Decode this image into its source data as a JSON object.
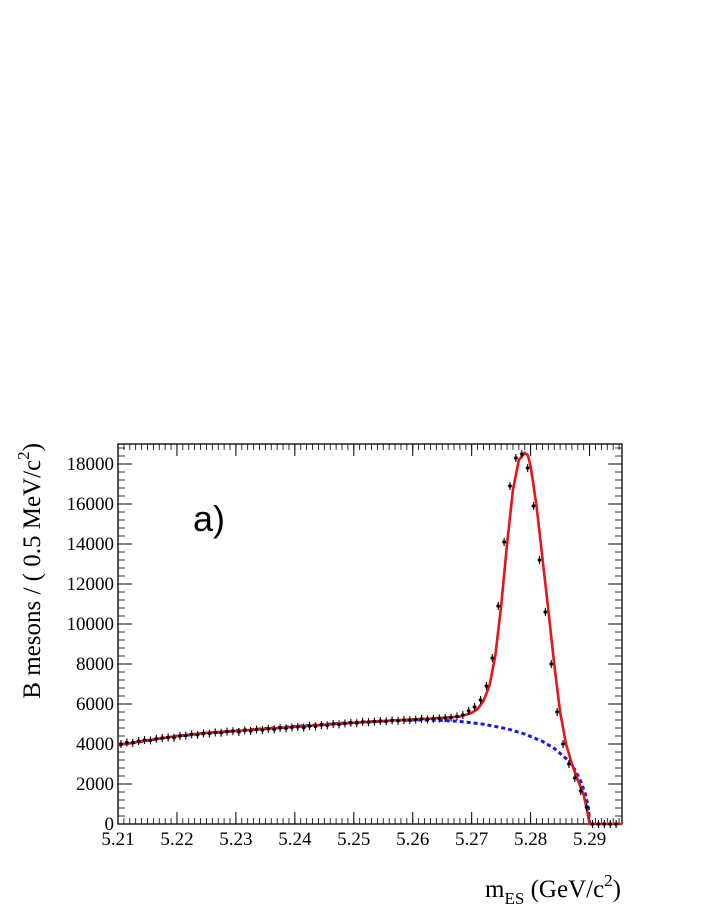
{
  "chart_data": {
    "type": "line",
    "title": "",
    "annotation": "a)",
    "xlabel": {
      "main": "m",
      "sub": "ES",
      "open": " (GeV/c",
      "sup": "2",
      "close": ")"
    },
    "ylabel": {
      "main": "B mesons / ( 0.5 MeV/c",
      "sup": "2",
      "close": ")"
    },
    "xlim": [
      5.21,
      5.2955
    ],
    "ylim": [
      0,
      19000
    ],
    "x_ticks": [
      "5.21",
      "5.22",
      "5.23",
      "5.24",
      "5.25",
      "5.26",
      "5.27",
      "5.28",
      "5.29"
    ],
    "y_ticks": [
      "0",
      "2000",
      "4000",
      "6000",
      "8000",
      "10000",
      "12000",
      "14000",
      "16000",
      "18000"
    ],
    "grid": false,
    "colors": {
      "total_fit": "#e8141a",
      "background_fit": "#1a1ae6",
      "data": "#000000"
    },
    "series": [
      {
        "kind": "points-with-errors",
        "x": [
          5.2105,
          5.2115,
          5.2125,
          5.2135,
          5.2145,
          5.2155,
          5.2165,
          5.2175,
          5.2185,
          5.2195,
          5.2205,
          5.2215,
          5.2225,
          5.2235,
          5.2245,
          5.2255,
          5.2265,
          5.2275,
          5.2285,
          5.2295,
          5.2305,
          5.2315,
          5.2325,
          5.2335,
          5.2345,
          5.2355,
          5.2365,
          5.2375,
          5.2385,
          5.2395,
          5.2405,
          5.2415,
          5.2425,
          5.2435,
          5.2445,
          5.2455,
          5.2465,
          5.2475,
          5.2485,
          5.2495,
          5.2505,
          5.2515,
          5.2525,
          5.2535,
          5.2545,
          5.2555,
          5.2565,
          5.2575,
          5.2585,
          5.2595,
          5.2605,
          5.2615,
          5.2625,
          5.2635,
          5.2645,
          5.2655,
          5.2665,
          5.2675,
          5.2685,
          5.2695,
          5.2705,
          5.2715,
          5.2725,
          5.2735,
          5.2745,
          5.2755,
          5.2765,
          5.2775,
          5.2785,
          5.2795,
          5.2805,
          5.2815,
          5.2825,
          5.2835,
          5.2845,
          5.2855,
          5.2865,
          5.2875,
          5.2885,
          5.2895,
          5.2905,
          5.2915,
          5.2925,
          5.2935,
          5.2945
        ],
        "y": [
          4000,
          4080,
          4060,
          4150,
          4200,
          4180,
          4260,
          4300,
          4330,
          4310,
          4400,
          4420,
          4480,
          4460,
          4530,
          4520,
          4580,
          4560,
          4620,
          4640,
          4600,
          4680,
          4650,
          4720,
          4700,
          4760,
          4730,
          4800,
          4780,
          4830,
          4850,
          4820,
          4900,
          4880,
          4950,
          4930,
          5000,
          4980,
          5030,
          5060,
          5040,
          5110,
          5090,
          5120,
          5150,
          5130,
          5180,
          5160,
          5200,
          5190,
          5220,
          5250,
          5230,
          5260,
          5280,
          5300,
          5320,
          5380,
          5450,
          5650,
          5850,
          6200,
          6900,
          8300,
          10900,
          14100,
          16900,
          18300,
          18500,
          17800,
          15900,
          13200,
          10600,
          8000,
          5600,
          4000,
          3000,
          2300,
          1650,
          850,
          0,
          0,
          0,
          0,
          0
        ],
        "error": 150
      },
      {
        "kind": "total-fit",
        "x": [
          5.21,
          5.215,
          5.22,
          5.225,
          5.23,
          5.235,
          5.24,
          5.245,
          5.25,
          5.255,
          5.26,
          5.263,
          5.266,
          5.268,
          5.27,
          5.271,
          5.272,
          5.273,
          5.274,
          5.275,
          5.276,
          5.277,
          5.278,
          5.279,
          5.2795,
          5.28,
          5.281,
          5.282,
          5.283,
          5.284,
          5.285,
          5.286,
          5.287,
          5.288,
          5.289,
          5.2895,
          5.29,
          5.2955
        ],
        "y": [
          3950,
          4180,
          4400,
          4560,
          4650,
          4760,
          4860,
          4960,
          5060,
          5150,
          5230,
          5270,
          5330,
          5370,
          5550,
          5750,
          6150,
          6900,
          8400,
          10900,
          14000,
          16700,
          18200,
          18550,
          18450,
          17900,
          15900,
          13300,
          10700,
          8000,
          5600,
          4000,
          3000,
          2200,
          1450,
          800,
          0,
          0
        ]
      },
      {
        "kind": "background-fit",
        "x": [
          5.21,
          5.22,
          5.23,
          5.24,
          5.25,
          5.26,
          5.264,
          5.268,
          5.272,
          5.276,
          5.279,
          5.282,
          5.284,
          5.286,
          5.2875,
          5.2885,
          5.2893,
          5.2898,
          5.29
        ],
        "y": [
          3950,
          4400,
          4660,
          4880,
          5080,
          5200,
          5190,
          5130,
          4990,
          4760,
          4500,
          4130,
          3780,
          3280,
          2720,
          2140,
          1480,
          820,
          0
        ]
      }
    ]
  }
}
